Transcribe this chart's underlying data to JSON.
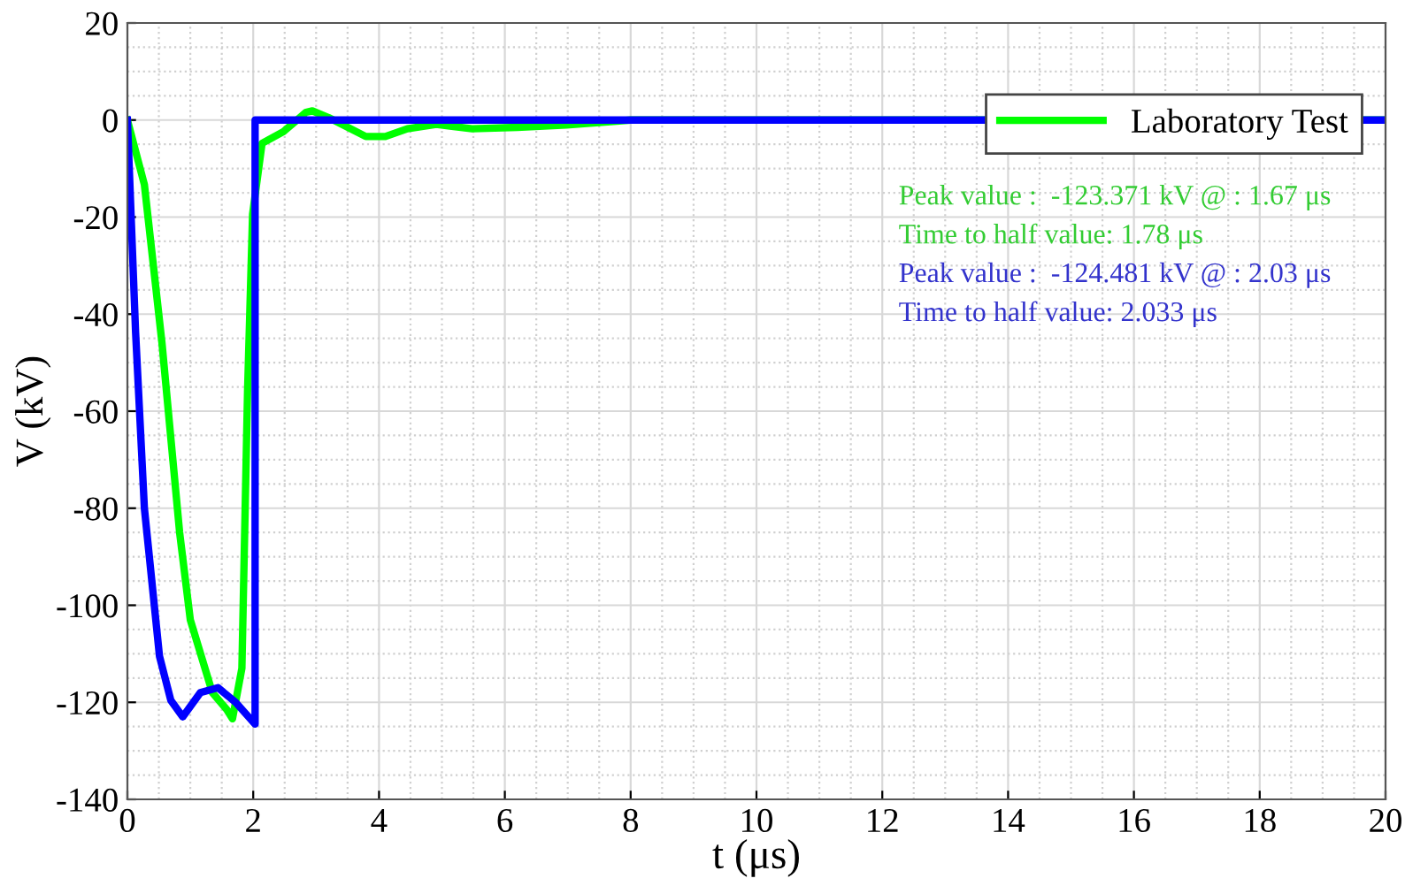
{
  "chart_data": {
    "type": "line",
    "xlabel": "t (μs)",
    "ylabel": "V (kV)",
    "xlim": [
      0,
      20
    ],
    "xticks": [
      0,
      2,
      4,
      6,
      8,
      10,
      12,
      14,
      16,
      18,
      20
    ],
    "ylim": [
      -140,
      20
    ],
    "yticks": [
      -140,
      -120,
      -100,
      -80,
      -60,
      -40,
      -20,
      0,
      20
    ],
    "grid": true,
    "legend": "top right",
    "line_style": "solid",
    "marker": "none",
    "series": [
      {
        "name": "Laboratory Test",
        "color": "#00ff00",
        "x": [
          0,
          0.27,
          0.55,
          0.83,
          1.0,
          1.35,
          1.58,
          1.67,
          1.82,
          1.91,
          1.99,
          2.14,
          2.48,
          2.84,
          2.94,
          3.2,
          3.79,
          4.1,
          4.45,
          4.91,
          5.48,
          6.2,
          6.98,
          7.73,
          8.0,
          20
        ],
        "values": [
          0,
          -13.3,
          -46,
          -85,
          -103,
          -118,
          -121.5,
          -123.4,
          -113,
          -56,
          -19.4,
          -4.8,
          -2.4,
          1.6,
          1.9,
          0.5,
          -3.4,
          -3.4,
          -1.8,
          -0.9,
          -1.8,
          -1.5,
          -1.0,
          -0.3,
          0,
          0
        ]
      },
      {
        "color": "#0000ff",
        "x": [
          0,
          0.13,
          0.27,
          0.51,
          0.69,
          0.88,
          1.16,
          1.44,
          1.72,
          2.03,
          2.03,
          20
        ],
        "values": [
          0,
          -43.7,
          -80,
          -110.5,
          -119.6,
          -123,
          -118,
          -117,
          -120,
          -124.5,
          0,
          0
        ]
      }
    ],
    "annotations": [
      "Peak value :  -123.371 kV @ : 1.67 μs",
      "Time to half value: 1.78 μs",
      "Peak value :  -124.481 kV @ : 2.03 μs",
      "Time to half value: 2.033 μs"
    ]
  }
}
